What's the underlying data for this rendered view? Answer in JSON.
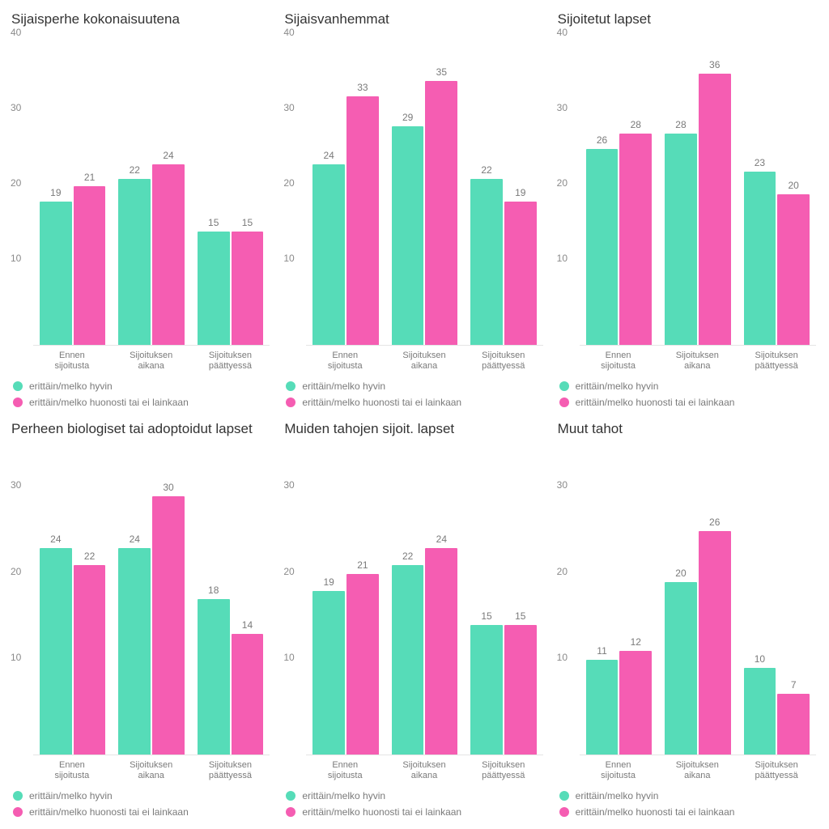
{
  "layout": {
    "cols": 3,
    "rows": 2
  },
  "colors": {
    "series1": "#56dcb8",
    "series2": "#f55db2",
    "axis_text": "#8a8a8a",
    "title_text": "#333333",
    "background": "#ffffff",
    "gridline": "#e5e5e5"
  },
  "axis": {
    "ylim": [
      0,
      40
    ],
    "yticks_row1": [
      10,
      20,
      30,
      40
    ],
    "yticks_row2": [
      10,
      20,
      30
    ],
    "ytick_step": 10
  },
  "categories": [
    {
      "line1": "Ennen",
      "line2": "sijoitusta"
    },
    {
      "line1": "Sijoituksen",
      "line2": "aikana"
    },
    {
      "line1": "Sijoituksen",
      "line2": "päättyessä"
    }
  ],
  "legend": {
    "s1": "erittäin/melko hyvin",
    "s2": "erittäin/melko huonosti tai ei lainkaan"
  },
  "typography": {
    "title_fontsize": 17,
    "label_fontsize": 12,
    "xlabel_fontsize": 11
  },
  "panels": [
    {
      "title": "Sijaisperhe kokonaisuutena",
      "ymax": 40,
      "yticks": [
        10,
        20,
        30,
        40
      ],
      "values": [
        [
          19,
          21
        ],
        [
          22,
          24
        ],
        [
          15,
          15
        ]
      ]
    },
    {
      "title": "Sijaisvanhemmat",
      "ymax": 40,
      "yticks": [
        10,
        20,
        30,
        40
      ],
      "values": [
        [
          24,
          33
        ],
        [
          29,
          35
        ],
        [
          22,
          19
        ]
      ]
    },
    {
      "title": "Sijoitetut lapset",
      "ymax": 40,
      "yticks": [
        10,
        20,
        30,
        40
      ],
      "values": [
        [
          26,
          28
        ],
        [
          28,
          36
        ],
        [
          23,
          20
        ]
      ]
    },
    {
      "title": "Perheen biologiset tai adoptoidut lapset",
      "ymax": 35,
      "yticks": [
        10,
        20,
        30
      ],
      "values": [
        [
          24,
          22
        ],
        [
          24,
          30
        ],
        [
          18,
          14
        ]
      ]
    },
    {
      "title": "Muiden tahojen sijoit. lapset",
      "ymax": 35,
      "yticks": [
        10,
        20,
        30
      ],
      "values": [
        [
          19,
          21
        ],
        [
          22,
          24
        ],
        [
          15,
          15
        ]
      ]
    },
    {
      "title": "Muut tahot",
      "ymax": 35,
      "yticks": [
        10,
        20,
        30
      ],
      "values": [
        [
          11,
          12
        ],
        [
          20,
          26
        ],
        [
          10,
          7
        ]
      ]
    }
  ]
}
